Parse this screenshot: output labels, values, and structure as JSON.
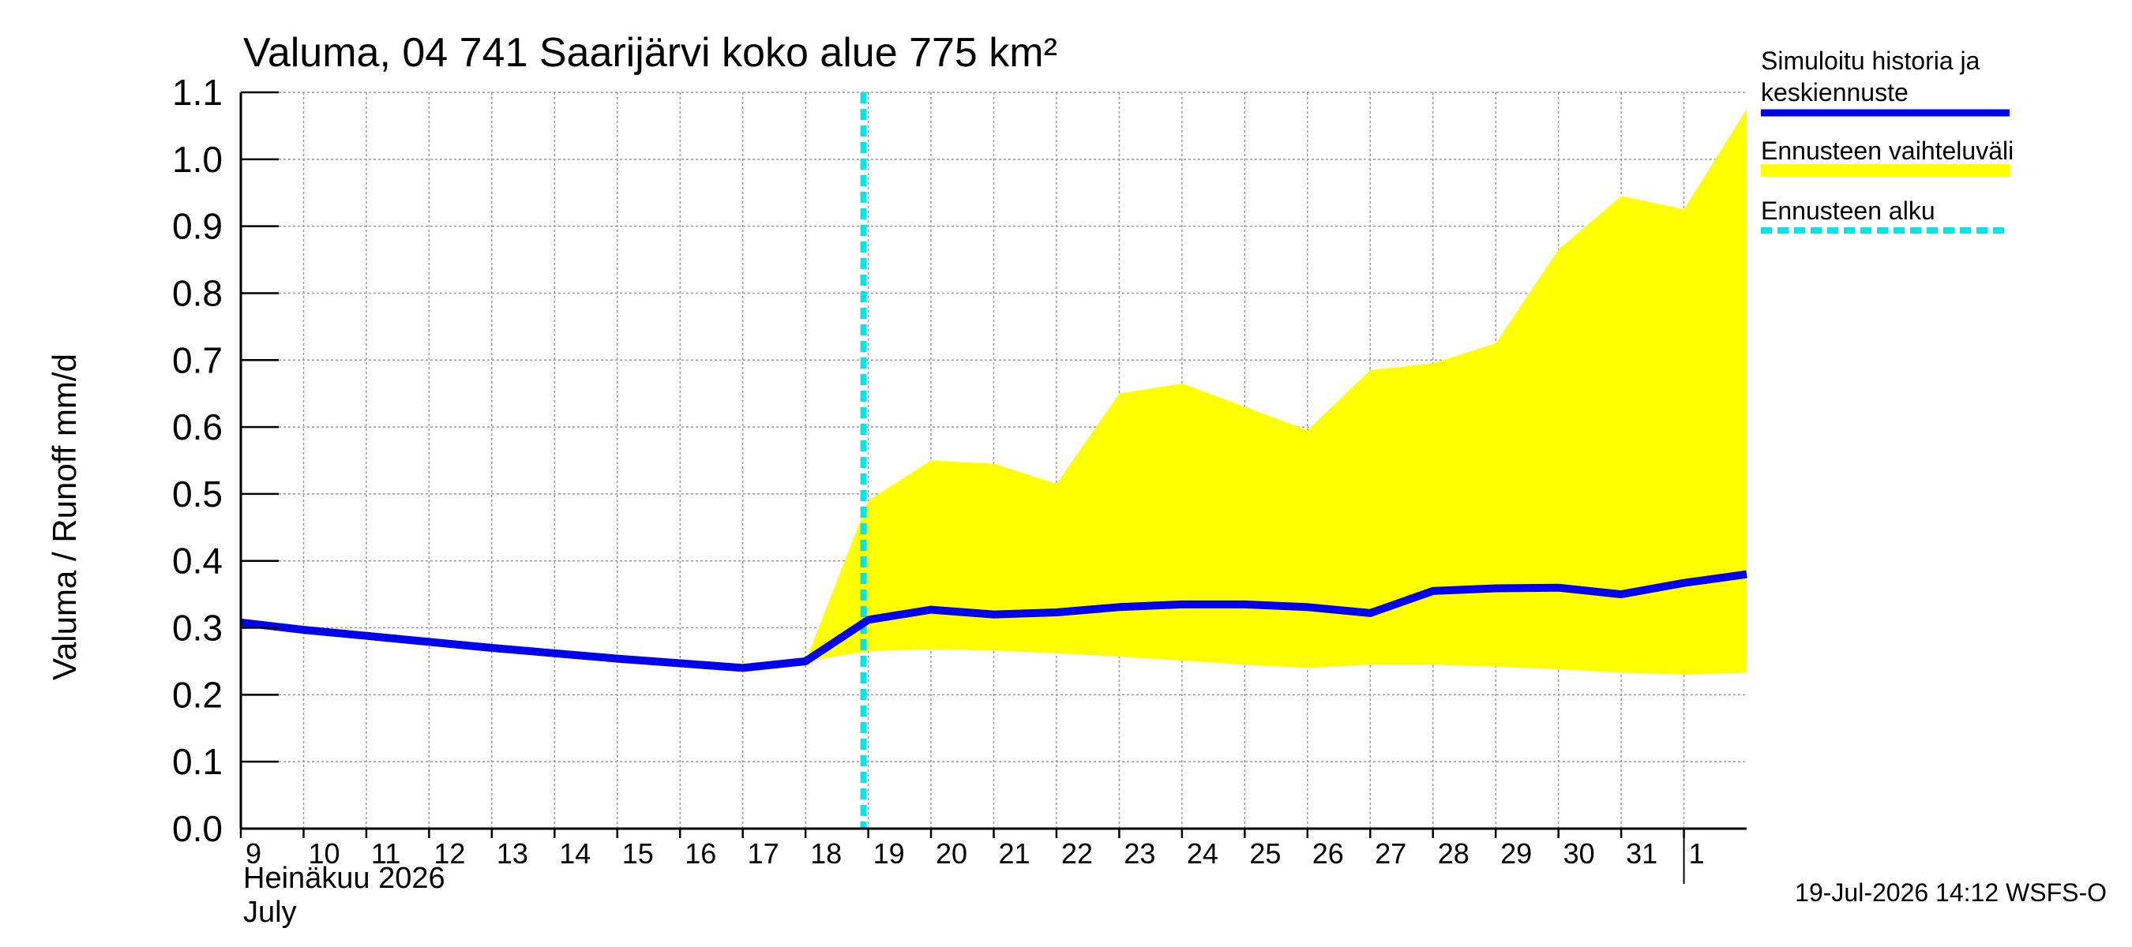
{
  "chart_data": {
    "type": "area",
    "title": "Valuma, 04 741 Saarijärvi koko alue 775 km²",
    "ylabel": "Valuma / Runoff     mm/d",
    "xlabel_fi": "Heinäkuu  2026",
    "xlabel_en": "July",
    "ylim": [
      0.0,
      1.1
    ],
    "yticks": [
      "0.0",
      "0.1",
      "0.2",
      "0.3",
      "0.4",
      "0.5",
      "0.6",
      "0.7",
      "0.8",
      "0.9",
      "1.0",
      "1.1"
    ],
    "xlim": [
      "2026-07-09",
      "2026-08-01 24:00"
    ],
    "xticks": [
      "9",
      "10",
      "11",
      "12",
      "13",
      "14",
      "15",
      "16",
      "17",
      "18",
      "19",
      "20",
      "21",
      "22",
      "23",
      "24",
      "25",
      "26",
      "27",
      "28",
      "29",
      "30",
      "31",
      "1"
    ],
    "grid": true,
    "forecast_start": "2026-07-19",
    "series": [
      {
        "name": "Simuloitu historia ja keskiennuste",
        "color": "#0000ee",
        "type": "line",
        "x": [
          "2026-07-09",
          "2026-07-10",
          "2026-07-11",
          "2026-07-12",
          "2026-07-13",
          "2026-07-14",
          "2026-07-15",
          "2026-07-16",
          "2026-07-17",
          "2026-07-18",
          "2026-07-19",
          "2026-07-20",
          "2026-07-21",
          "2026-07-22",
          "2026-07-23",
          "2026-07-24",
          "2026-07-25",
          "2026-07-26",
          "2026-07-27",
          "2026-07-28",
          "2026-07-29",
          "2026-07-30",
          "2026-07-31",
          "2026-08-01",
          "2026-08-02"
        ],
        "y": [
          0.308,
          0.297,
          0.288,
          0.279,
          0.27,
          0.262,
          0.254,
          0.247,
          0.24,
          0.25,
          0.312,
          0.327,
          0.32,
          0.323,
          0.331,
          0.335,
          0.335,
          0.331,
          0.322,
          0.355,
          0.359,
          0.36,
          0.35,
          0.367,
          0.38
        ]
      },
      {
        "name": "Ennusteen vaihteluväli",
        "color": "#ffff00",
        "type": "band",
        "x": [
          "2026-07-18",
          "2026-07-19",
          "2026-07-20",
          "2026-07-21",
          "2026-07-22",
          "2026-07-23",
          "2026-07-24",
          "2026-07-25",
          "2026-07-26",
          "2026-07-27",
          "2026-07-28",
          "2026-07-29",
          "2026-07-30",
          "2026-07-31",
          "2026-08-01",
          "2026-08-02"
        ],
        "upper": [
          0.25,
          0.49,
          0.55,
          0.545,
          0.515,
          0.65,
          0.665,
          0.63,
          0.595,
          0.685,
          0.695,
          0.725,
          0.865,
          0.945,
          0.925,
          1.075
        ],
        "lower": [
          0.25,
          0.265,
          0.268,
          0.266,
          0.262,
          0.257,
          0.251,
          0.245,
          0.24,
          0.245,
          0.245,
          0.242,
          0.238,
          0.233,
          0.23,
          0.233
        ]
      },
      {
        "name": "Ennusteen alku",
        "color": "#00e5e5",
        "type": "vline"
      }
    ],
    "legend_position": "right",
    "footer": "19-Jul-2026 14:12 WSFS-O"
  }
}
